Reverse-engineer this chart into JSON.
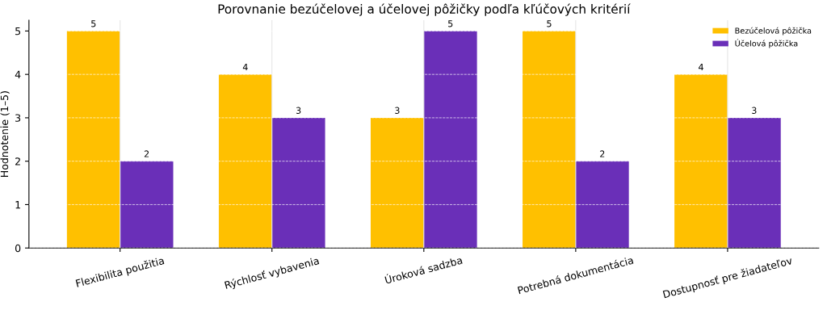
{
  "chart_data": {
    "type": "bar",
    "title": "Porovnanie bezúčelovej a účelovej pôžičky podľa kľúčových kritérií",
    "ylabel": "Hodnotenie (1–5)",
    "categories": [
      "Flexibilita použitia",
      "Rýchlosť vybavenia",
      "Úroková sadzba",
      "Potrebná dokumentácia",
      "Dostupnosť pre žiadateľov"
    ],
    "series": [
      {
        "name": "Bezúčelová pôžička",
        "color": "#ffc000",
        "values": [
          5,
          4,
          3,
          5,
          4
        ]
      },
      {
        "name": "Účelová pôžička",
        "color": "#6a2fb8",
        "values": [
          2,
          3,
          5,
          2,
          3
        ]
      }
    ],
    "ylim": [
      0,
      5.25
    ],
    "yticks": [
      0,
      1,
      2,
      3,
      4,
      5
    ],
    "grid": true,
    "legend": "top right",
    "data_labels": true
  }
}
